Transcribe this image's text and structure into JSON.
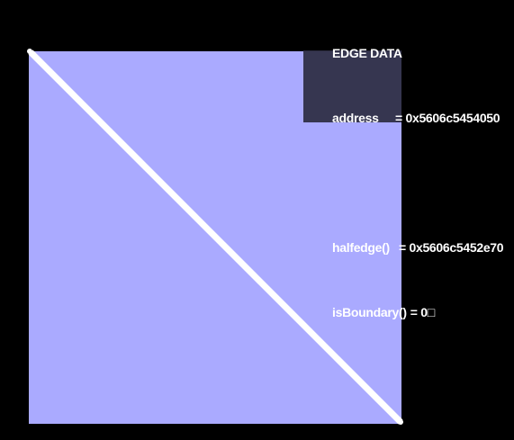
{
  "canvas": {
    "background_color": "#000000",
    "face_color": "#aaaaff",
    "edge_color": "#ffffff",
    "overlay_color": "#2d2d41"
  },
  "edge_data": {
    "title": "EDGE DATA",
    "address_label": "address",
    "address_value": "= 0x5606c5454050",
    "halfedge_label": "halfedge()",
    "halfedge_value": "= 0x5606c5452e70",
    "is_boundary_label": "isBoundary()",
    "is_boundary_value": "= 0□"
  }
}
